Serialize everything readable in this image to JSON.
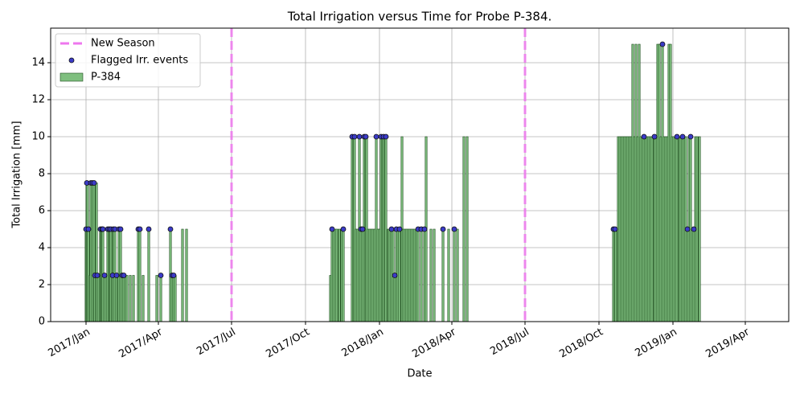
{
  "chart_data": {
    "type": "bar",
    "title": "Total Irrigation versus Time for Probe P-384.",
    "x_label": "Date",
    "y_label": "Total Irrigation [mm]",
    "xlim": [
      "2016-11-18",
      "2019-05-25"
    ],
    "ylim": [
      0,
      15.87
    ],
    "xticks": [
      {
        "value": "2017-01-01",
        "label": "2017/Jan"
      },
      {
        "value": "2017-04-01",
        "label": "2017/Apr"
      },
      {
        "value": "2017-07-01",
        "label": "2017/Jul"
      },
      {
        "value": "2017-10-01",
        "label": "2017/Oct"
      },
      {
        "value": "2018-01-01",
        "label": "2018/Jan"
      },
      {
        "value": "2018-04-01",
        "label": "2018/Apr"
      },
      {
        "value": "2018-07-01",
        "label": "2018/Jul"
      },
      {
        "value": "2018-10-01",
        "label": "2018/Oct"
      },
      {
        "value": "2019-01-01",
        "label": "2019/Jan"
      },
      {
        "value": "2019-04-01",
        "label": "2019/Apr"
      }
    ],
    "yticks": [
      0,
      2,
      4,
      6,
      8,
      10,
      12,
      14
    ],
    "grid": true,
    "legend": "upper left",
    "vlines": {
      "name": "New Season",
      "color": "#ee77ee",
      "x": [
        "2017-07-01",
        "2018-07-01"
      ]
    },
    "series": [
      {
        "name": "New Season",
        "type": "vline",
        "color": "#ee77ee"
      },
      {
        "name": "Flagged Irr. events",
        "type": "scatter",
        "color": "#3b3bc8",
        "x": [
          "2017-01-01",
          "2017-01-02",
          "2017-01-04",
          "2017-01-07",
          "2017-01-09",
          "2017-01-11",
          "2017-01-12",
          "2017-01-15",
          "2017-01-19",
          "2017-01-21",
          "2017-01-22",
          "2017-01-24",
          "2017-01-28",
          "2017-01-30",
          "2017-02-01",
          "2017-02-03",
          "2017-02-04",
          "2017-02-06",
          "2017-02-08",
          "2017-02-11",
          "2017-02-13",
          "2017-02-15",
          "2017-02-17",
          "2017-03-07",
          "2017-03-09",
          "2017-03-20",
          "2017-04-04",
          "2017-04-16",
          "2017-04-18",
          "2017-04-20",
          "2017-11-03",
          "2017-11-17",
          "2017-11-28",
          "2017-12-01",
          "2017-12-07",
          "2017-12-09",
          "2017-12-11",
          "2017-12-13",
          "2017-12-15",
          "2017-12-28",
          "2018-01-03",
          "2018-01-06",
          "2018-01-09",
          "2018-01-16",
          "2018-01-20",
          "2018-01-22",
          "2018-01-26",
          "2018-02-18",
          "2018-02-22",
          "2018-02-26",
          "2018-03-21",
          "2018-04-04",
          "2018-10-19",
          "2018-10-21",
          "2018-11-26",
          "2018-12-09",
          "2018-12-19",
          "2019-01-06",
          "2019-01-13",
          "2019-01-19",
          "2019-01-23",
          "2019-01-27"
        ],
        "values": [
          5,
          7.5,
          5,
          7.5,
          7.5,
          7.5,
          2.5,
          2.5,
          5,
          5,
          5,
          2.5,
          5,
          5,
          5,
          2.5,
          5,
          5,
          2.5,
          5,
          5,
          2.5,
          2.5,
          5,
          5,
          5,
          2.5,
          5,
          2.5,
          2.5,
          5,
          5,
          10,
          10,
          10,
          5,
          5,
          10,
          10,
          10,
          10,
          10,
          10,
          5,
          2.5,
          5,
          5,
          5,
          5,
          5,
          5,
          5,
          5,
          5,
          10,
          10,
          15,
          10,
          10,
          5,
          10,
          5
        ]
      },
      {
        "name": "P-384",
        "type": "bar",
        "color": "#7fbf7f",
        "x": [
          "2017-01-01",
          "2017-01-02",
          "2017-01-03",
          "2017-01-04",
          "2017-01-06",
          "2017-01-07",
          "2017-01-09",
          "2017-01-11",
          "2017-01-12",
          "2017-01-14",
          "2017-01-15",
          "2017-01-17",
          "2017-01-19",
          "2017-01-20",
          "2017-01-21",
          "2017-01-22",
          "2017-01-24",
          "2017-01-26",
          "2017-01-28",
          "2017-01-30",
          "2017-01-31",
          "2017-02-01",
          "2017-02-03",
          "2017-02-04",
          "2017-02-06",
          "2017-02-08",
          "2017-02-10",
          "2017-02-11",
          "2017-02-13",
          "2017-02-15",
          "2017-02-17",
          "2017-02-19",
          "2017-02-21",
          "2017-02-25",
          "2017-03-01",
          "2017-03-07",
          "2017-03-09",
          "2017-03-13",
          "2017-03-20",
          "2017-03-30",
          "2017-04-04",
          "2017-04-16",
          "2017-04-18",
          "2017-04-20",
          "2017-04-22",
          "2017-05-01",
          "2017-05-06",
          "2017-11-01",
          "2017-11-03",
          "2017-11-05",
          "2017-11-07",
          "2017-11-09",
          "2017-11-12",
          "2017-11-15",
          "2017-11-17",
          "2017-11-28",
          "2017-11-30",
          "2017-12-01",
          "2017-12-03",
          "2017-12-05",
          "2017-12-07",
          "2017-12-09",
          "2017-12-11",
          "2017-12-13",
          "2017-12-15",
          "2017-12-16",
          "2017-12-18",
          "2017-12-20",
          "2017-12-22",
          "2017-12-24",
          "2017-12-26",
          "2017-12-28",
          "2017-12-30",
          "2018-01-01",
          "2018-01-03",
          "2018-01-05",
          "2018-01-06",
          "2018-01-08",
          "2018-01-09",
          "2018-01-12",
          "2018-01-14",
          "2018-01-16",
          "2018-01-18",
          "2018-01-20",
          "2018-01-22",
          "2018-01-24",
          "2018-01-26",
          "2018-01-29",
          "2018-01-31",
          "2018-02-02",
          "2018-02-04",
          "2018-02-06",
          "2018-02-08",
          "2018-02-10",
          "2018-02-12",
          "2018-02-14",
          "2018-02-16",
          "2018-02-18",
          "2018-02-22",
          "2018-02-26",
          "2018-02-28",
          "2018-03-06",
          "2018-03-10",
          "2018-03-21",
          "2018-03-28",
          "2018-04-04",
          "2018-04-08",
          "2018-04-16",
          "2018-04-20",
          "2018-10-19",
          "2018-10-21",
          "2018-10-22",
          "2018-10-25",
          "2018-10-27",
          "2018-10-29",
          "2018-10-31",
          "2018-11-02",
          "2018-11-04",
          "2018-11-06",
          "2018-11-08",
          "2018-11-10",
          "2018-11-12",
          "2018-11-14",
          "2018-11-16",
          "2018-11-18",
          "2018-11-20",
          "2018-11-22",
          "2018-11-24",
          "2018-11-26",
          "2018-11-28",
          "2018-11-30",
          "2018-12-02",
          "2018-12-04",
          "2018-12-06",
          "2018-12-09",
          "2018-12-11",
          "2018-12-13",
          "2018-12-15",
          "2018-12-17",
          "2018-12-19",
          "2018-12-21",
          "2018-12-23",
          "2018-12-25",
          "2018-12-27",
          "2018-12-29",
          "2018-12-31",
          "2019-01-02",
          "2019-01-04",
          "2019-01-06",
          "2019-01-09",
          "2019-01-11",
          "2019-01-13",
          "2019-01-15",
          "2019-01-17",
          "2019-01-19",
          "2019-01-21",
          "2019-01-23",
          "2019-01-25",
          "2019-01-27",
          "2019-01-29",
          "2019-01-31",
          "2019-02-03"
        ],
        "values": [
          5,
          7.5,
          7.5,
          5,
          2.5,
          7.5,
          7.5,
          7.5,
          2.5,
          7.5,
          2.5,
          2.5,
          5,
          5,
          5,
          5,
          2.5,
          2.5,
          5,
          5,
          5,
          5,
          2.5,
          5,
          5,
          2.5,
          2.5,
          5,
          5,
          2.5,
          2.5,
          2.5,
          2.5,
          2.5,
          2.5,
          5,
          5,
          2.5,
          5,
          2.5,
          2.5,
          5,
          2.5,
          2.5,
          2.5,
          5,
          5,
          2.5,
          5,
          5,
          5,
          5,
          5,
          5,
          5,
          10,
          10,
          10,
          5,
          5,
          10,
          5,
          5,
          10,
          10,
          10,
          5,
          5,
          5,
          5,
          5,
          10,
          5,
          5,
          10,
          10,
          10,
          10,
          10,
          5,
          5,
          5,
          5,
          2.5,
          5,
          5,
          5,
          10,
          5,
          5,
          5,
          5,
          5,
          5,
          5,
          5,
          5,
          5,
          5,
          5,
          10,
          5,
          5,
          5,
          5,
          5,
          5,
          10,
          10,
          5,
          5,
          5,
          10,
          10,
          10,
          10,
          10,
          10,
          10,
          10,
          10,
          15,
          10,
          15,
          10,
          15,
          10,
          10,
          10,
          10,
          10,
          10,
          10,
          10,
          10,
          10,
          15,
          15,
          10,
          15,
          10,
          10,
          10,
          15,
          15,
          10,
          10,
          10,
          10,
          10,
          10,
          10,
          10,
          10,
          5,
          10,
          10,
          5,
          5,
          10,
          10,
          10
        ]
      }
    ]
  }
}
